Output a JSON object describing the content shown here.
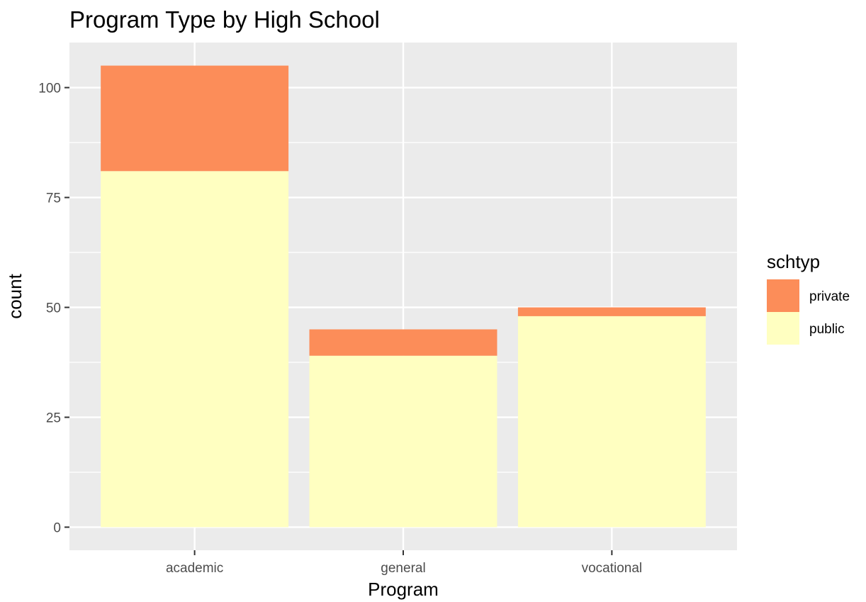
{
  "chart_data": {
    "type": "bar",
    "stacked": true,
    "title": "Program Type by High School",
    "xlabel": "Program",
    "ylabel": "count",
    "categories": [
      "academic",
      "general",
      "vocational"
    ],
    "series": [
      {
        "name": "public",
        "values": [
          81,
          39,
          48
        ],
        "color": "#FFFFC1"
      },
      {
        "name": "private",
        "values": [
          24,
          6,
          2
        ],
        "color": "#FC8D59"
      }
    ],
    "ylim": [
      -5.25,
      110.25
    ],
    "yticks": [
      0,
      25,
      50,
      75,
      100
    ],
    "grid": true,
    "legend": {
      "title": "schtyp",
      "placement": "right",
      "entries": [
        "private",
        "public"
      ]
    },
    "panel_color": "#EBEBEB",
    "grid_color": "#FFFFFF"
  }
}
